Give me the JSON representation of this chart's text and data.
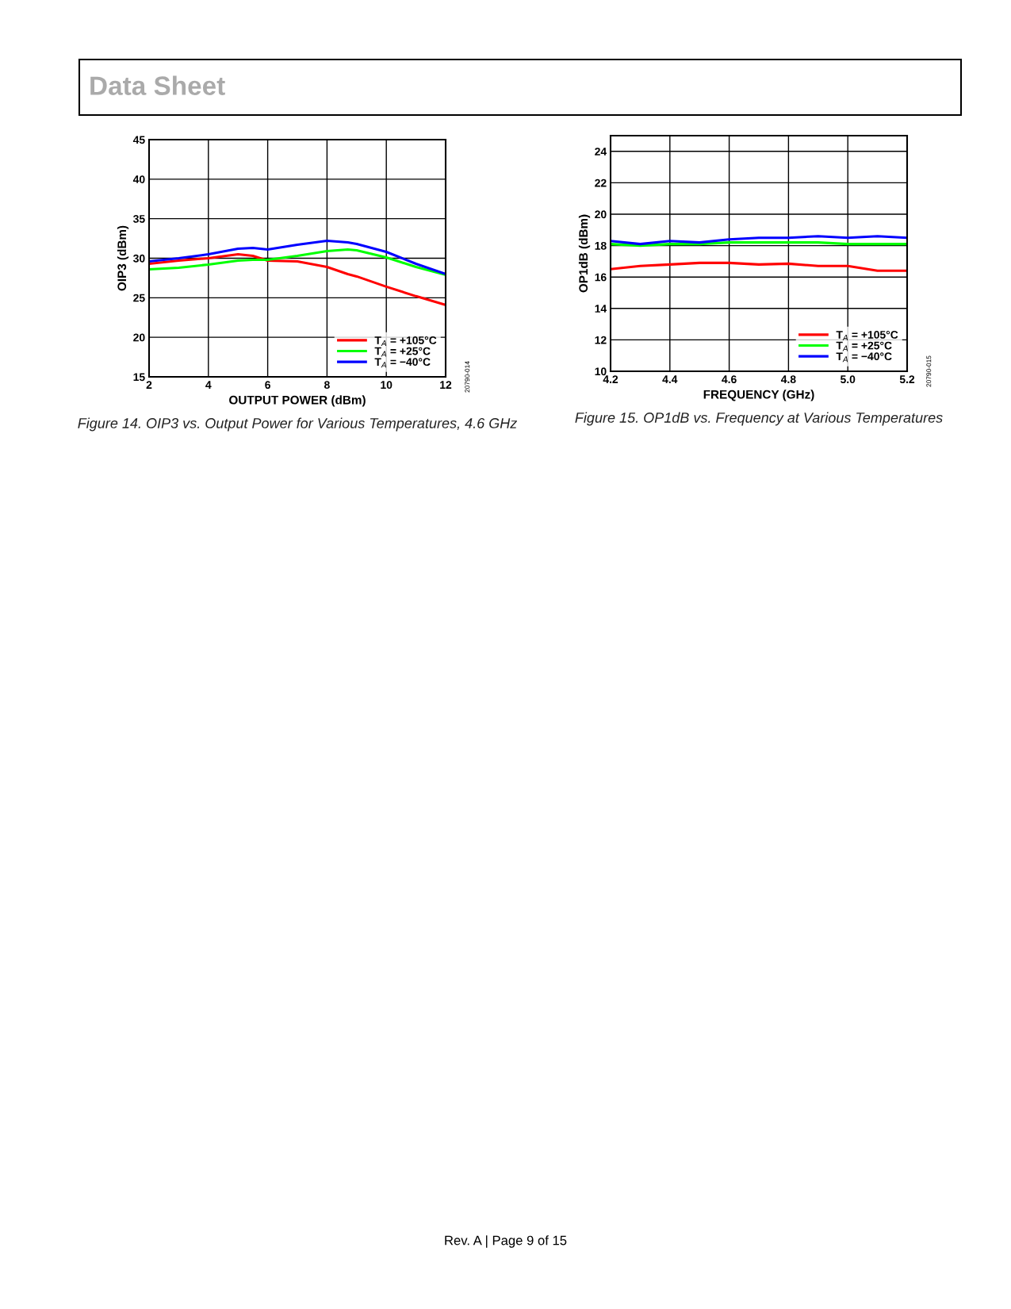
{
  "chart_data": [
    {
      "type": "line",
      "xlabel": "OUTPUT POWER (dBm)",
      "ylabel": "OIP3 (dBm)",
      "annotations": [
        "Figure 14. OIP3 vs. Output Power for Various Temperatures, 4.6 GHz",
        "20790-014",
        "Data Sheet",
        "Rev. A | Page 9 of 15"
      ],
      "x": [
        2,
        3,
        4,
        5,
        5.5,
        6,
        7,
        8,
        8.7,
        9,
        10,
        11,
        12
      ],
      "series": [
        {
          "name": "T$_{A}$ = +105°C",
          "color": "#ff0000",
          "values": [
            29.3,
            29.7,
            30.0,
            30.5,
            30.3,
            29.7,
            29.6,
            28.9,
            28.0,
            27.7,
            26.4,
            25.2,
            24.1
          ]
        },
        {
          "name": "T$_{A}$ = +25°C",
          "color": "#00ff00",
          "values": [
            28.6,
            28.8,
            29.2,
            29.7,
            29.8,
            29.8,
            30.3,
            30.9,
            31.1,
            31.0,
            30.1,
            28.9,
            27.9
          ]
        },
        {
          "name": "T$_{A}$ = −40°C",
          "color": "#0000ff",
          "values": [
            29.6,
            30.0,
            30.5,
            31.2,
            31.3,
            31.1,
            31.7,
            32.2,
            32.0,
            31.8,
            30.8,
            29.3,
            28.0
          ]
        }
      ],
      "xlim": [
        2,
        12
      ],
      "xticks": [
        2,
        4,
        6,
        8,
        10,
        12
      ],
      "ylim": [
        15,
        45
      ],
      "yticks": [
        15,
        20,
        25,
        30,
        35,
        40,
        45
      ],
      "grid": true,
      "legend": "bottom right",
      "line_style": "solid",
      "marker": "none"
    },
    {
      "type": "line",
      "xlabel": "FREQUENCY (GHz)",
      "ylabel": "OP1dB (dBm)",
      "annotations": [
        "Figure 15. OP1dB vs. Frequency at Various Temperatures",
        "20790-015"
      ],
      "x": [
        4.2,
        4.3,
        4.4,
        4.5,
        4.6,
        4.7,
        4.8,
        4.9,
        5.0,
        5.1,
        5.2
      ],
      "series": [
        {
          "name": "T$_{A}$ = +105°C",
          "color": "#ff0000",
          "values": [
            16.5,
            16.7,
            16.8,
            16.9,
            16.9,
            16.8,
            16.85,
            16.7,
            16.7,
            16.4,
            16.4
          ]
        },
        {
          "name": "T$_{A}$ = +25°C",
          "color": "#00ff00",
          "values": [
            18.1,
            18.0,
            18.1,
            18.1,
            18.2,
            18.2,
            18.2,
            18.2,
            18.1,
            18.1,
            18.1
          ]
        },
        {
          "name": "T$_{A}$ = −40°C",
          "color": "#0000ff",
          "values": [
            18.3,
            18.1,
            18.3,
            18.2,
            18.4,
            18.5,
            18.5,
            18.6,
            18.5,
            18.6,
            18.5
          ]
        }
      ],
      "xlim": [
        4.2,
        5.2
      ],
      "xticks": [
        {
          "value": 4.2,
          "label": "4.2"
        },
        {
          "value": 4.4,
          "label": "4.4"
        },
        {
          "value": 4.6,
          "label": "4.6"
        },
        {
          "value": 4.8,
          "label": "4.8"
        },
        {
          "value": 5.0,
          "label": "5.0"
        },
        {
          "value": 5.2,
          "label": "5.2"
        }
      ],
      "ylim": [
        10,
        25
      ],
      "yticks": [
        10,
        12,
        14,
        16,
        18,
        20,
        22,
        24
      ],
      "grid": true,
      "legend": "bottom right",
      "line_style": "solid",
      "marker": "none"
    }
  ]
}
